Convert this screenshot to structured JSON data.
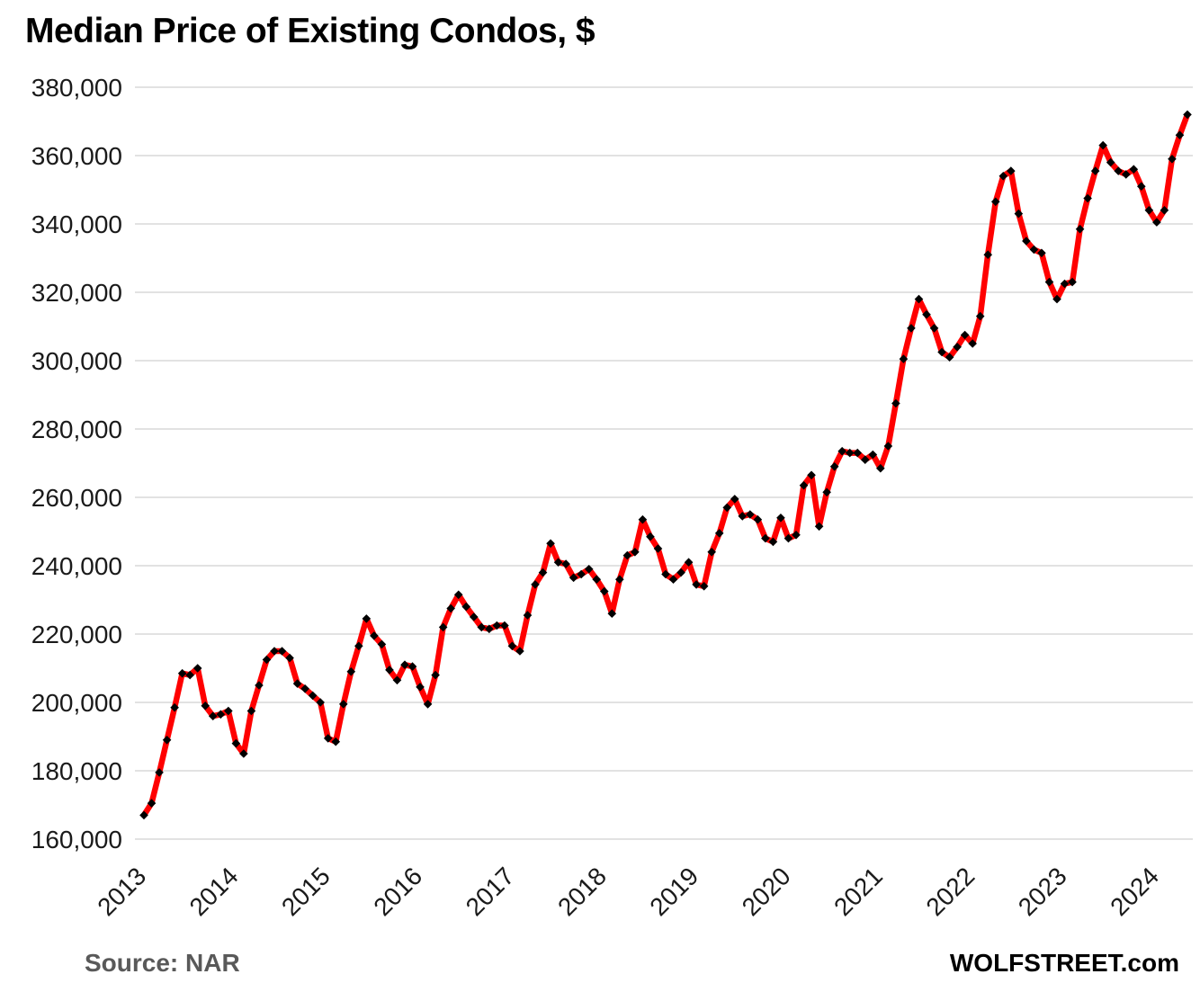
{
  "title": "Median Price of Existing Condos, $",
  "source_label": "Source: NAR",
  "brand_label": "WOLFSTREET.com",
  "colors": {
    "line": "#FF0000",
    "marker": "#000000",
    "gridline": "#D9D9D9",
    "axis_text": "#1a1a1a",
    "source_text": "#595959",
    "background": "#ffffff"
  },
  "chart_data": {
    "type": "line",
    "title": "Median Price of Existing Condos, $",
    "xlabel": "",
    "ylabel": "",
    "frequency": "monthly",
    "x_start": "2013-01",
    "x_end": "2024-05",
    "grid": "horizontal-only",
    "legend": "none",
    "ylim": [
      160000,
      380000
    ],
    "y_ticks": [
      160000,
      180000,
      200000,
      220000,
      240000,
      260000,
      280000,
      300000,
      320000,
      340000,
      360000,
      380000
    ],
    "x_tick_years": [
      "2013",
      "2014",
      "2015",
      "2016",
      "2017",
      "2018",
      "2019",
      "2020",
      "2021",
      "2022",
      "2023",
      "2024"
    ],
    "marker_style": "black-diamond",
    "series": [
      {
        "name": "Median price of existing condos, $",
        "color": "#FF0000",
        "values": [
          167000,
          170500,
          179500,
          189000,
          198500,
          208500,
          208000,
          210000,
          199000,
          196000,
          196500,
          197500,
          188000,
          185000,
          197500,
          205000,
          212500,
          215000,
          215000,
          213000,
          205500,
          204000,
          202000,
          200000,
          189500,
          188500,
          199500,
          209000,
          216500,
          224500,
          219500,
          217000,
          209500,
          206500,
          211000,
          210500,
          204500,
          199500,
          208000,
          222000,
          227500,
          231500,
          228000,
          225000,
          222000,
          221500,
          222500,
          222500,
          216500,
          215000,
          225500,
          234500,
          238000,
          246500,
          241000,
          240500,
          236500,
          237500,
          239000,
          236000,
          232500,
          226000,
          236000,
          243000,
          244000,
          253500,
          248500,
          245000,
          237500,
          236000,
          238000,
          241000,
          234500,
          234000,
          244000,
          249500,
          257000,
          259500,
          254500,
          255000,
          253500,
          248000,
          247000,
          254000,
          248000,
          249000,
          263500,
          266500,
          251500,
          261500,
          269000,
          273500,
          273000,
          273000,
          271000,
          272500,
          268500,
          275000,
          287500,
          300500,
          309500,
          318000,
          313500,
          309500,
          302500,
          301000,
          304000,
          307500,
          305000,
          313000,
          331000,
          346500,
          354000,
          355500,
          343000,
          335000,
          332500,
          331500,
          323000,
          318000,
          322500,
          323000,
          338500,
          347500,
          355500,
          363000,
          358000,
          355500,
          354500,
          356000,
          351000,
          344000,
          340500,
          344000,
          359000,
          366000,
          372000
        ]
      }
    ]
  }
}
